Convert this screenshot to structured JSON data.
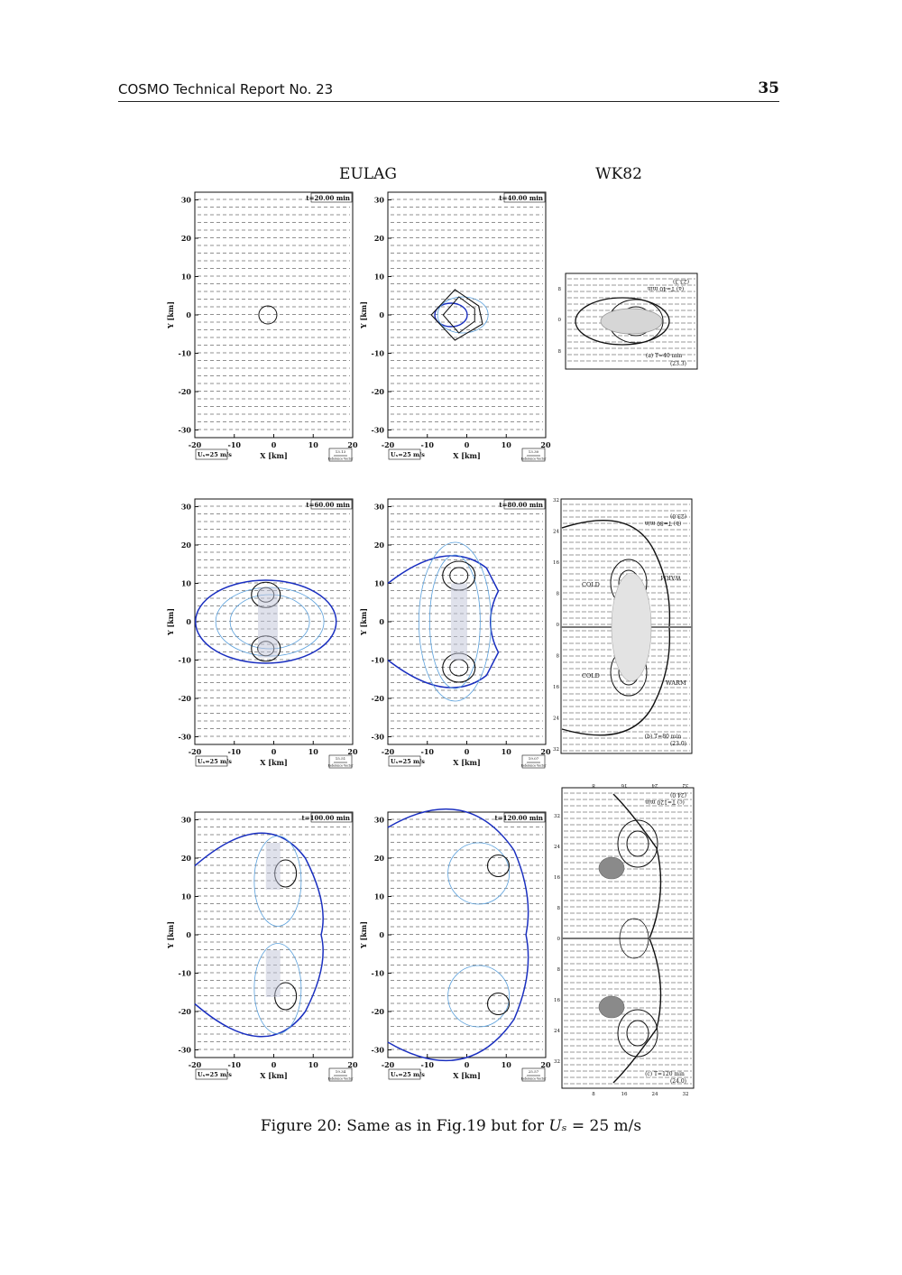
{
  "header": {
    "title": "COSMO Technical Report No. 23",
    "page_number": "35"
  },
  "columns": {
    "left": "EULAG",
    "right": "WK82"
  },
  "axes": {
    "x_label": "X [km]",
    "y_label": "Y [km]",
    "x_ticks": [
      "-20",
      "-10",
      "0",
      "10",
      "20"
    ],
    "y_ticks": [
      "30",
      "20",
      "10",
      "0",
      "-10",
      "-20",
      "-30"
    ]
  },
  "speed_label": "Uₛ=25 m/s",
  "ref_vector": {
    "caption": "Reference Vector"
  },
  "panels": [
    {
      "time": "t=20.00 min",
      "ref_value": "13.13"
    },
    {
      "time": "t=40.00 min",
      "ref_value": "13.30"
    },
    {
      "time": "t=60.00 min",
      "ref_value": "15.51"
    },
    {
      "time": "t=80.00 min",
      "ref_value": "19.07"
    },
    {
      "time": "t=100.00 min",
      "ref_value": "19.34"
    },
    {
      "time": "t=120.00 min",
      "ref_value": "25.57"
    }
  ],
  "wk82": {
    "a": {
      "time": "(a) T=40 min",
      "ref": "(23.3)",
      "time_mirror": "(a) T=40 min",
      "ref_mirror": "(23.3)",
      "ticks": [
        "8",
        "0",
        "8"
      ]
    },
    "b": {
      "time": "(b) T=80 min",
      "ref": "(23.0)",
      "time_mirror": "(b) T=80 min",
      "ref_mirror": "(23.0)",
      "warm": "WARM",
      "cold": "COLD",
      "ticks": [
        "32",
        "24",
        "16",
        "8",
        "0",
        "8",
        "16",
        "24",
        "32"
      ]
    },
    "c": {
      "time": "(c) T=120 min",
      "ref": "(24.0)",
      "time_mirror": "(c) T=120 min",
      "ref_mirror": "(24.0)",
      "x_ticks": [
        "8",
        "16",
        "24",
        "32"
      ],
      "y_ticks": [
        "32",
        "24",
        "16",
        "8",
        "0",
        "8",
        "16",
        "24",
        "32"
      ]
    }
  },
  "caption": {
    "prefix": "Figure 20: Same as in Fig.19 but for ",
    "math": "Uₛ",
    "suffix": " = 25 m/s"
  }
}
